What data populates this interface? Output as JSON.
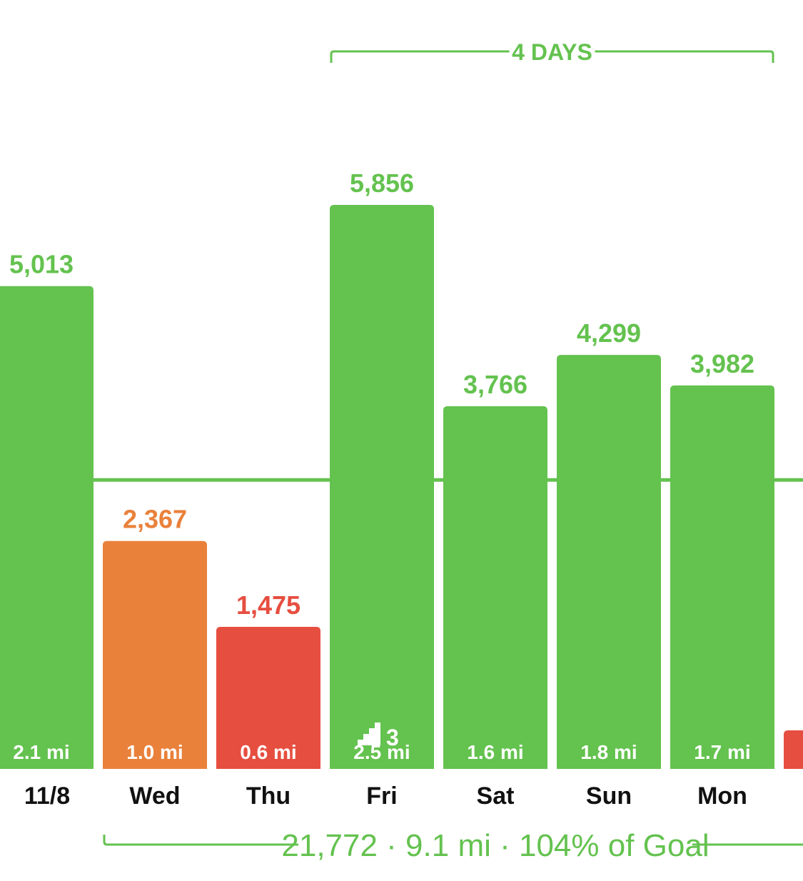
{
  "colors": {
    "green": "#64C24F",
    "orange": "#E9813B",
    "red": "#E64E40",
    "label": "#111111",
    "white": "#FFFFFF"
  },
  "streak": {
    "label": "4 DAYS",
    "from_day": "Fri",
    "to_day": "Mon"
  },
  "summary": {
    "text": "21,772 · 9.1 mi · 104% of Goal"
  },
  "floors": {
    "day": "Fri",
    "icon": "stairs-icon",
    "count": "3"
  },
  "chart_data": {
    "type": "bar",
    "categories": [
      "11/8",
      "Wed",
      "Thu",
      "Fri",
      "Sat",
      "Sun",
      "Mon",
      ""
    ],
    "values": [
      5013,
      2367,
      1475,
      5856,
      3766,
      4299,
      3982,
      400
    ],
    "value_labels": [
      "5,013",
      "2,367",
      "1,475",
      "5,856",
      "3,766",
      "4,299",
      "3,982",
      ""
    ],
    "distance_labels": [
      "2.1 mi",
      "1.0 mi",
      "0.6 mi",
      "2.5 mi",
      "1.6 mi",
      "1.8 mi",
      "1.7 mi",
      ""
    ],
    "bar_colors": [
      "green",
      "orange",
      "red",
      "green",
      "green",
      "green",
      "green",
      "red"
    ],
    "goal": 3000,
    "ylim": [
      0,
      6500
    ],
    "grid": false,
    "legend": "none"
  }
}
